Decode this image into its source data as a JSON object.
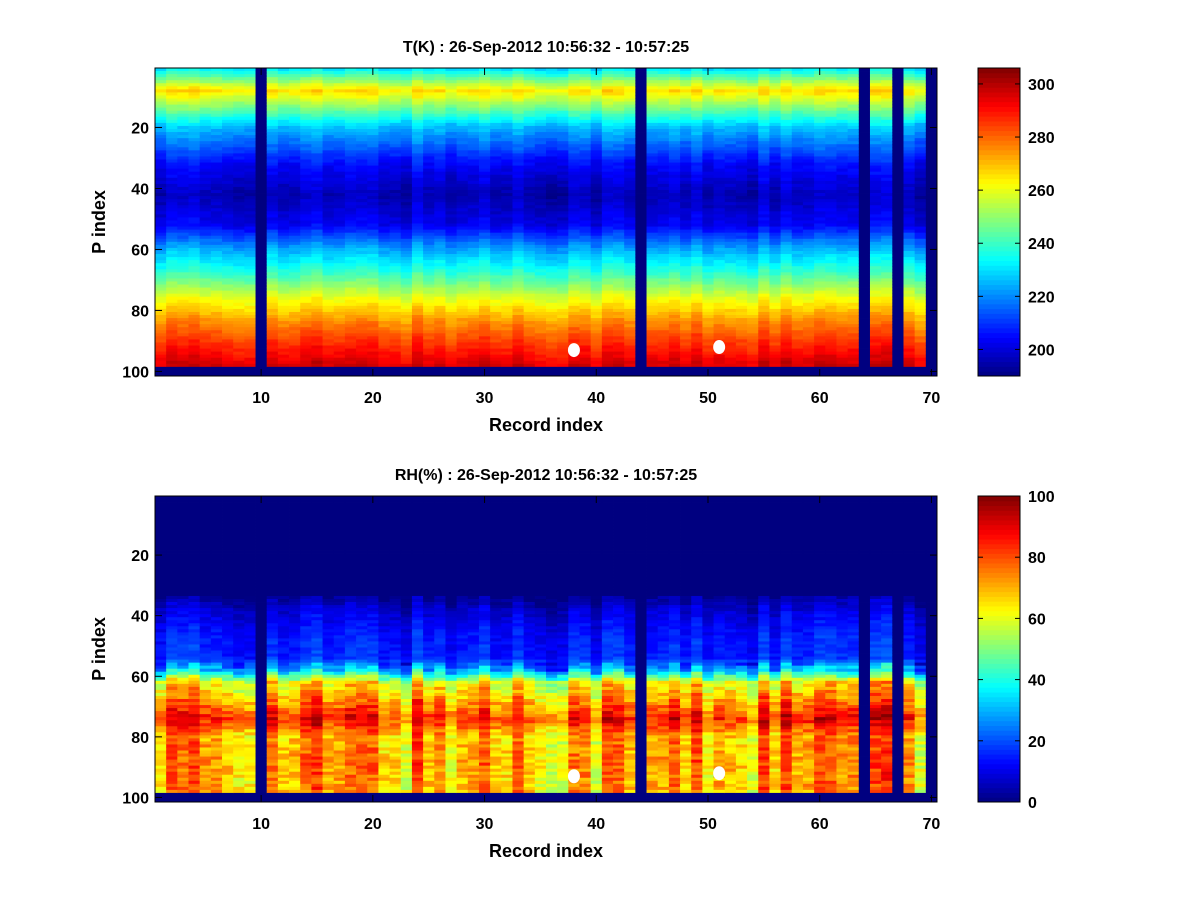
{
  "chart_data": [
    {
      "type": "heatmap",
      "title": "T(K) : 26-Sep-2012 10:56:32 - 10:57:25",
      "xlabel": "Record index",
      "ylabel": "P index",
      "xlim": [
        0.5,
        70.5
      ],
      "ylim": [
        0.5,
        101.5
      ],
      "y_reversed": true,
      "xticks": [
        10,
        20,
        30,
        40,
        50,
        60,
        70
      ],
      "yticks": [
        20,
        40,
        60,
        80,
        100
      ],
      "colormap": "jet",
      "clim": [
        190,
        306
      ],
      "colorbar_ticks": [
        200,
        220,
        240,
        260,
        280,
        300
      ],
      "n_records": 70,
      "n_levels": 101,
      "missing_records": [
        10,
        44,
        64,
        67,
        70
      ],
      "missing_levels_from": 99,
      "mean_profile": {
        "p": [
          1,
          8,
          20,
          32,
          42,
          52,
          60,
          68,
          76,
          84,
          92,
          98
        ],
        "value": [
          232,
          266,
          226,
          205,
          196,
          203,
          224,
          240,
          260,
          276,
          288,
          296
        ]
      },
      "noise_amplitude": 7,
      "markers": [
        {
          "x": 38,
          "y": 93
        },
        {
          "x": 51,
          "y": 92
        }
      ]
    },
    {
      "type": "heatmap",
      "title": "RH(%) : 26-Sep-2012 10:56:32 - 10:57:25",
      "xlabel": "Record index",
      "ylabel": "P index",
      "xlim": [
        0.5,
        70.5
      ],
      "ylim": [
        0.5,
        101.5
      ],
      "y_reversed": true,
      "xticks": [
        10,
        20,
        30,
        40,
        50,
        60,
        70
      ],
      "yticks": [
        20,
        40,
        60,
        80,
        100
      ],
      "colormap": "jet",
      "clim": [
        0,
        100
      ],
      "colorbar_ticks": [
        0,
        20,
        40,
        60,
        80,
        100
      ],
      "n_records": 70,
      "n_levels": 101,
      "missing_records": [
        10,
        44,
        64,
        67,
        70
      ],
      "missing_levels_from": 99,
      "mean_profile": {
        "p": [
          1,
          32,
          38,
          46,
          54,
          58,
          62,
          68,
          74,
          80,
          88,
          98
        ],
        "value": [
          0,
          0,
          8,
          14,
          16,
          30,
          62,
          72,
          85,
          70,
          72,
          70
        ]
      },
      "noise_amplitude": 22,
      "markers": [
        {
          "x": 38,
          "y": 93
        },
        {
          "x": 51,
          "y": 92
        }
      ]
    }
  ]
}
